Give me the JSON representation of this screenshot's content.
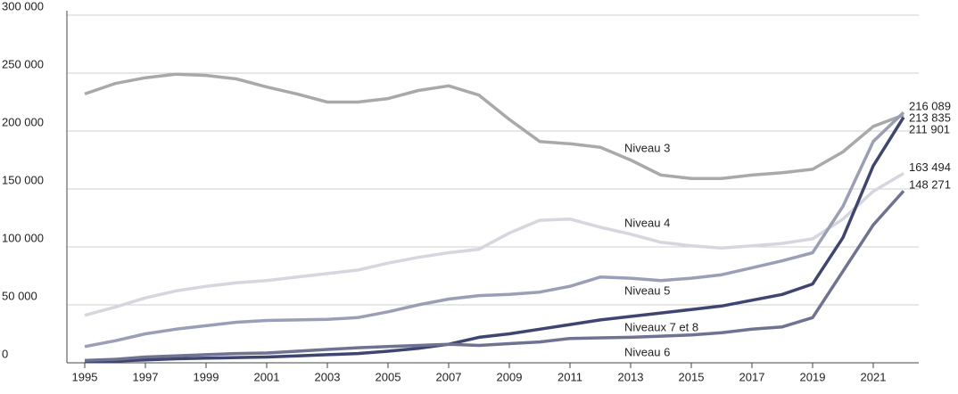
{
  "chart_data": {
    "type": "line",
    "x": [
      1995,
      1996,
      1997,
      1998,
      1999,
      2000,
      2001,
      2002,
      2003,
      2004,
      2005,
      2006,
      2007,
      2008,
      2009,
      2010,
      2011,
      2012,
      2013,
      2014,
      2015,
      2016,
      2017,
      2018,
      2019,
      2020,
      2021,
      2022
    ],
    "series": [
      {
        "name": "Niveau 3",
        "color": "#a9a9a9",
        "values": [
          232000,
          241000,
          246000,
          249000,
          248000,
          245000,
          238000,
          232000,
          225000,
          225000,
          228000,
          235000,
          239000,
          231000,
          210000,
          191000,
          189000,
          186000,
          175000,
          162000,
          159000,
          159000,
          162000,
          164000,
          167000,
          182000,
          204000,
          213835
        ],
        "value_labels": [
          null,
          null,
          null,
          null,
          null,
          null,
          null,
          null,
          null,
          null,
          null,
          null,
          null,
          null,
          null,
          null,
          null,
          null,
          null,
          null,
          null,
          null,
          null,
          null,
          null,
          null,
          null,
          "213 835"
        ]
      },
      {
        "name": "Niveau 4",
        "color": "#d6d6de",
        "values": [
          41000,
          48000,
          56000,
          62000,
          66000,
          69000,
          71000,
          74000,
          77000,
          80000,
          86000,
          91000,
          95000,
          98000,
          112000,
          123000,
          124000,
          117000,
          111000,
          104000,
          101000,
          99000,
          101000,
          103000,
          107000,
          124000,
          148000,
          163494
        ],
        "value_labels": [
          null,
          null,
          null,
          null,
          null,
          null,
          null,
          null,
          null,
          null,
          null,
          null,
          null,
          null,
          null,
          null,
          null,
          null,
          null,
          null,
          null,
          null,
          null,
          null,
          null,
          null,
          null,
          "163 494"
        ]
      },
      {
        "name": "Niveau 5",
        "color": "#9a9fb6",
        "values": [
          14000,
          19000,
          25000,
          29000,
          32000,
          35000,
          36500,
          37000,
          37500,
          39000,
          44000,
          50000,
          55000,
          58000,
          59000,
          61000,
          66000,
          74000,
          73000,
          71000,
          73000,
          76000,
          82000,
          88000,
          95000,
          135000,
          191000,
          216089
        ],
        "value_labels": [
          null,
          null,
          null,
          null,
          null,
          null,
          null,
          null,
          null,
          null,
          null,
          null,
          null,
          null,
          null,
          null,
          null,
          null,
          null,
          null,
          null,
          null,
          null,
          null,
          null,
          null,
          null,
          "216 089"
        ]
      },
      {
        "name": "Niveaux 7 et 8",
        "color": "#3e4571",
        "values": [
          1000,
          1500,
          2500,
          3500,
          4000,
          4500,
          5000,
          6000,
          7000,
          8000,
          10000,
          12500,
          16000,
          22000,
          25000,
          29000,
          33000,
          37000,
          40000,
          43000,
          46000,
          49000,
          54000,
          59000,
          68000,
          108000,
          170000,
          211901
        ],
        "value_labels": [
          null,
          null,
          null,
          null,
          null,
          null,
          null,
          null,
          null,
          null,
          null,
          null,
          null,
          null,
          null,
          null,
          null,
          null,
          null,
          null,
          null,
          null,
          null,
          null,
          null,
          null,
          null,
          "211 901"
        ]
      },
      {
        "name": "Niveau 6",
        "color": "#707291",
        "values": [
          2000,
          3000,
          5000,
          6000,
          7000,
          8000,
          8500,
          10000,
          11500,
          13000,
          14000,
          15000,
          16000,
          15000,
          16500,
          18000,
          21000,
          21500,
          22000,
          23000,
          24000,
          26000,
          29000,
          31000,
          39000,
          79000,
          119000,
          148271
        ],
        "value_labels": [
          null,
          null,
          null,
          null,
          null,
          null,
          null,
          null,
          null,
          null,
          null,
          null,
          null,
          null,
          null,
          null,
          null,
          null,
          null,
          null,
          null,
          null,
          null,
          null,
          null,
          null,
          null,
          "148 271"
        ]
      }
    ],
    "xlim": [
      1995,
      2022
    ],
    "xticks": [
      1995,
      1997,
      1999,
      2001,
      2003,
      2005,
      2007,
      2009,
      2011,
      2013,
      2015,
      2017,
      2019,
      2021
    ],
    "ylim": [
      0,
      300000
    ],
    "yticks": [
      {
        "value": 0,
        "label": "0"
      },
      {
        "value": 50000,
        "label": "50 000"
      },
      {
        "value": 100000,
        "label": "100 000"
      },
      {
        "value": 150000,
        "label": "150 000"
      },
      {
        "value": 200000,
        "label": "200 000"
      },
      {
        "value": 250000,
        "label": "250 000"
      },
      {
        "value": 300000,
        "label": "300 000"
      }
    ],
    "grid": true
  }
}
